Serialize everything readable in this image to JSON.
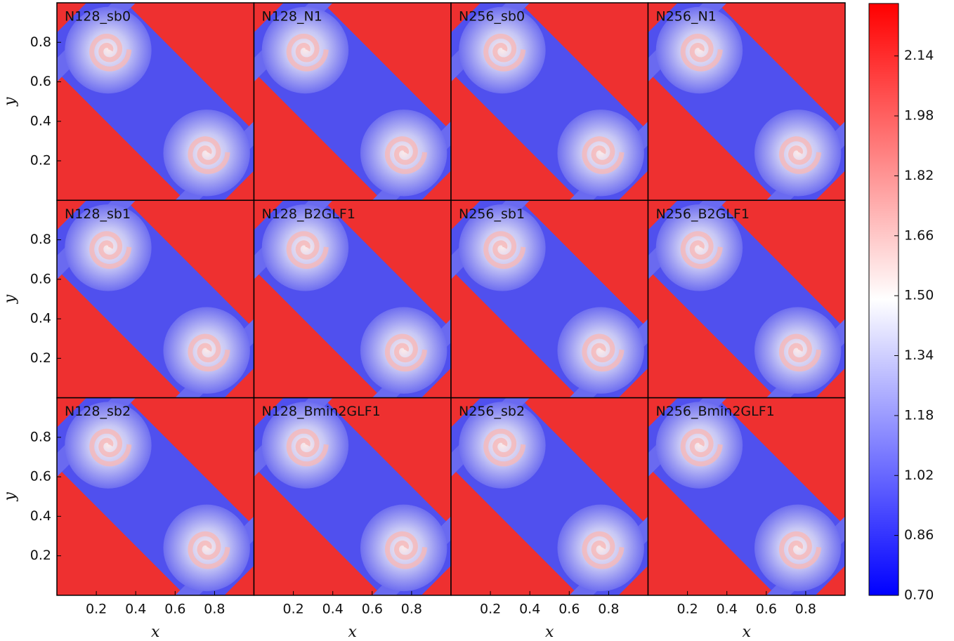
{
  "chart_data": {
    "type": "heatmap-grid",
    "panels": [
      "N128_sb0",
      "N128_N1",
      "N256_sb0",
      "N256_N1",
      "N128_sb1",
      "N128_B2GLF1",
      "N256_sb1",
      "N256_B2GLF1",
      "N128_sb2",
      "N128_Bmin2GLF1",
      "N256_sb2",
      "N256_Bmin2GLF1"
    ],
    "columns": 4,
    "xlabel": "x",
    "ylabel": "y",
    "xlim": [
      0,
      1
    ],
    "ylim": [
      0,
      1
    ],
    "xticks": [
      0.2,
      0.4,
      0.6,
      0.8
    ],
    "yticks": [
      0.2,
      0.4,
      0.6,
      0.8
    ],
    "clim": [
      0.7,
      2.28
    ],
    "cticks": [
      {
        "value": 0.7,
        "label": "0.70"
      },
      0.86,
      1.02,
      1.18,
      1.34,
      {
        "value": 1.5,
        "label": "1.50"
      },
      1.66,
      1.82,
      1.98,
      2.14
    ],
    "colors": [
      "#0000ff",
      "#ffffff",
      "#ff0000"
    ]
  }
}
